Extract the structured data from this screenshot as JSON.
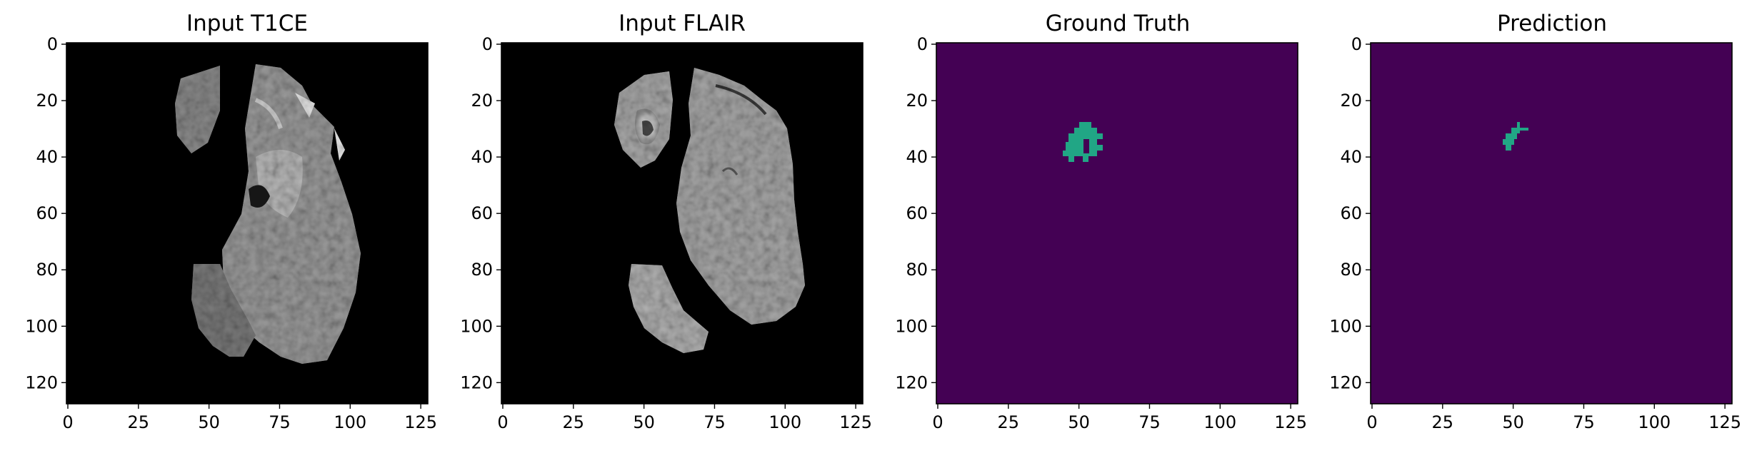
{
  "figure": {
    "panels": [
      {
        "title": "Input T1CE",
        "kind": "mri",
        "variant": "t1ce"
      },
      {
        "title": "Input FLAIR",
        "kind": "mri",
        "variant": "flair"
      },
      {
        "title": "Ground Truth",
        "kind": "mask",
        "variant": "gt"
      },
      {
        "title": "Prediction",
        "kind": "mask",
        "variant": "pred"
      }
    ],
    "xticks": [
      0,
      25,
      50,
      75,
      100,
      125
    ],
    "yticks": [
      0,
      20,
      40,
      60,
      80,
      100,
      120
    ],
    "image_extent": [
      -0.5,
      127.5
    ],
    "colors": {
      "mask_background": "#440154",
      "mask_foreground": "#21a685",
      "mri_background": "#000000"
    }
  }
}
